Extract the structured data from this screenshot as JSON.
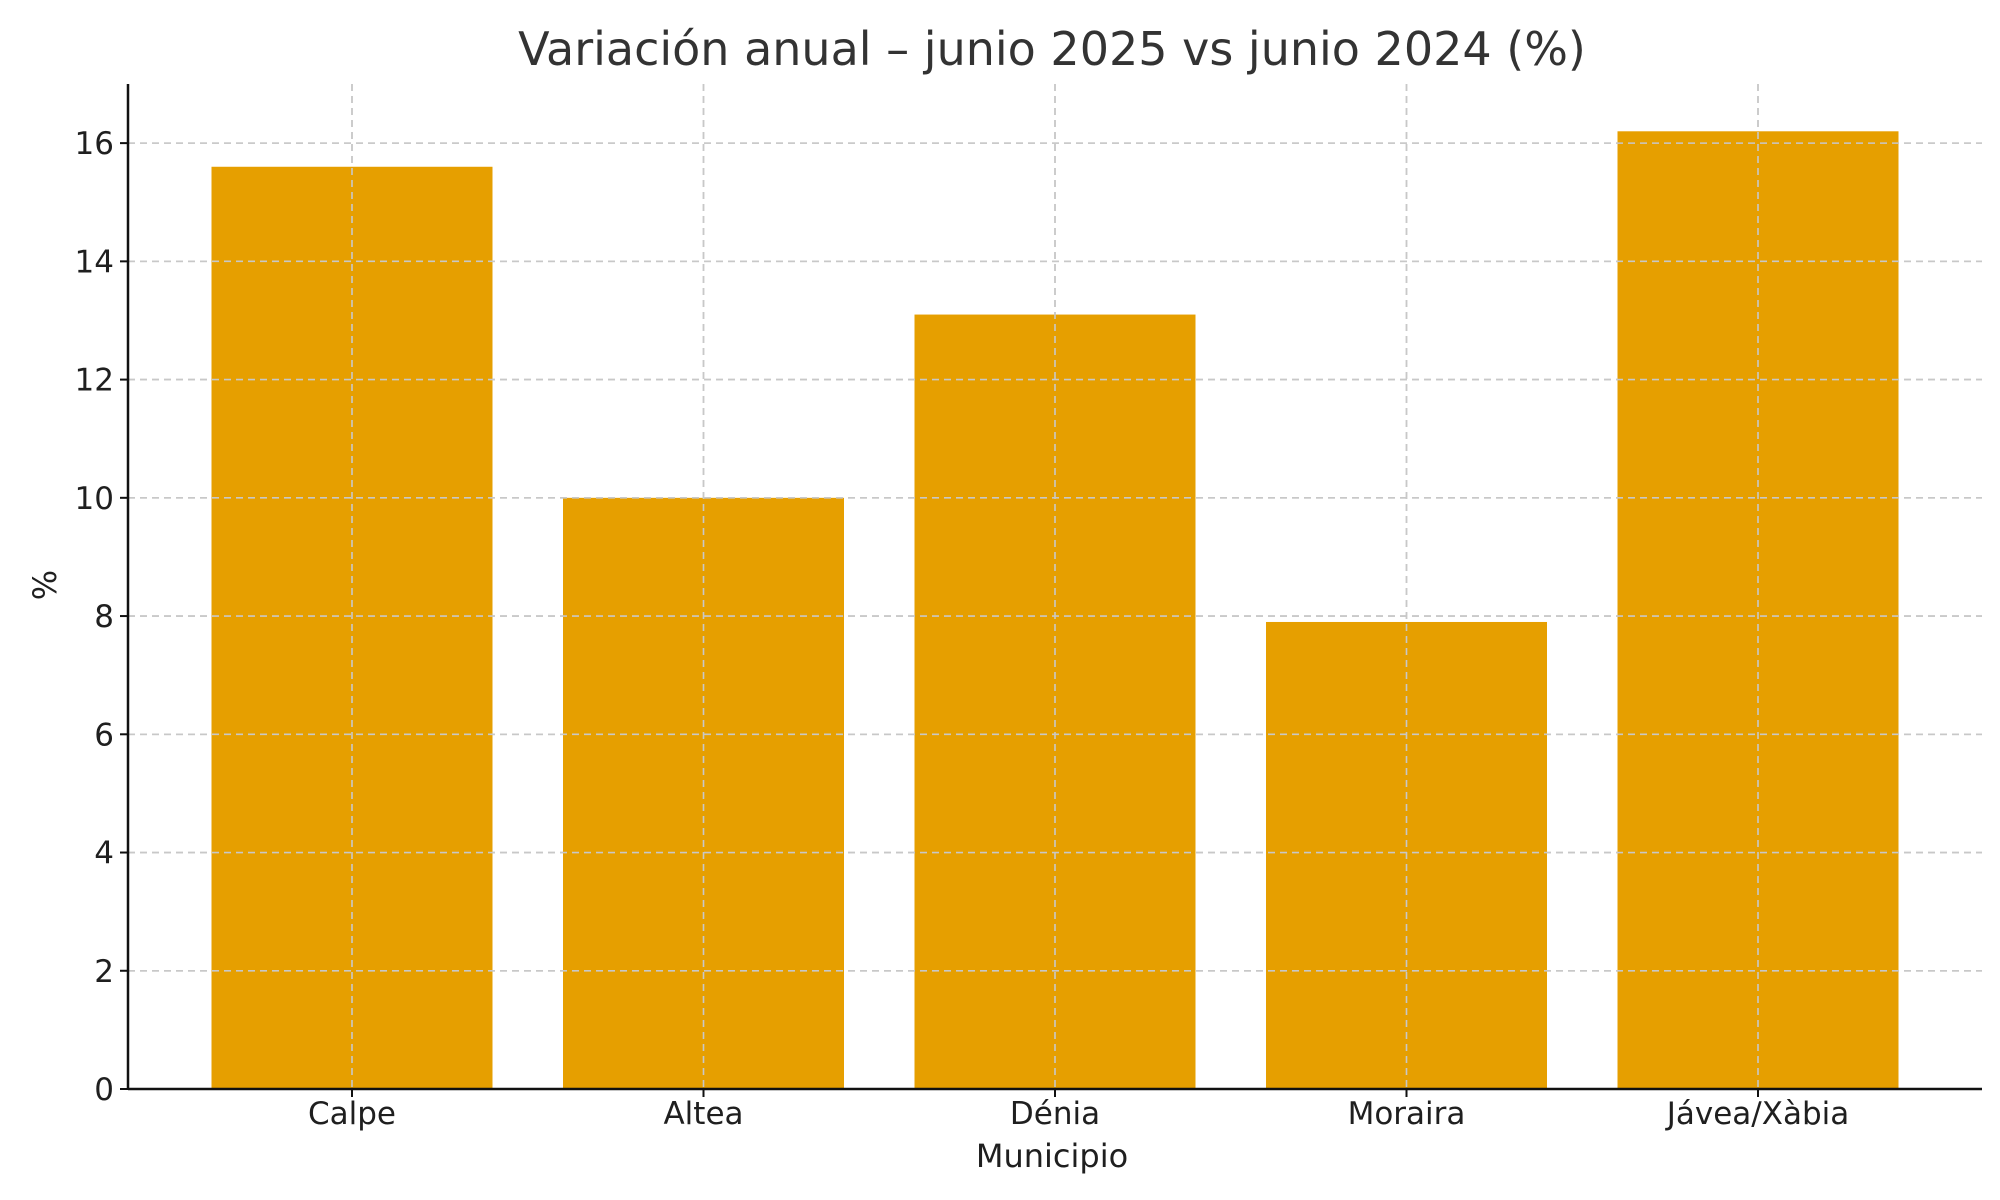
{
  "chart_data": {
    "type": "bar",
    "title": "Variación anual – junio 2025 vs junio 2024 (%)",
    "xlabel": "Municipio",
    "ylabel": "%",
    "categories": [
      "Calpe",
      "Altea",
      "Dénia",
      "Moraira",
      "Jávea/Xàbia"
    ],
    "values": [
      15.6,
      10.0,
      13.1,
      7.9,
      16.2
    ],
    "ylim": [
      0,
      17
    ],
    "yticks": [
      0,
      2,
      4,
      6,
      8,
      10,
      12,
      14,
      16
    ],
    "grid": true,
    "bar_color": "#E69F00",
    "legend": "none"
  }
}
